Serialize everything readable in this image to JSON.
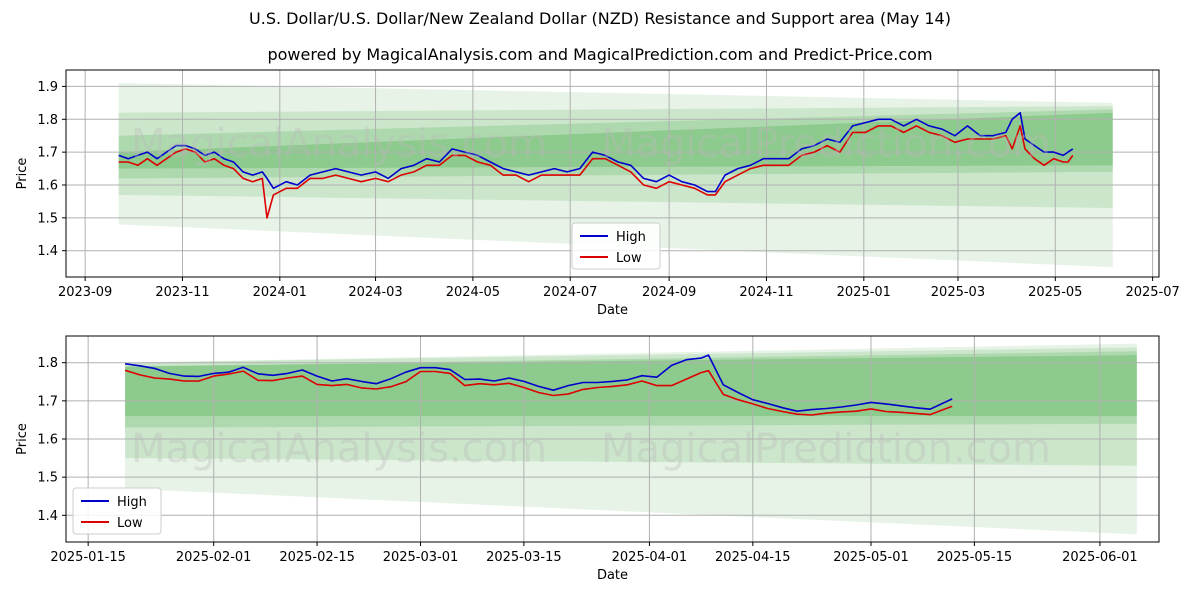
{
  "title": "U.S. Dollar/U.S. Dollar/New Zealand Dollar (NZD) Resistance and Support area (May 14)",
  "subtitle": "powered by MagicalAnalysis.com and MagicalPrediction.com and Predict-Price.com",
  "watermarks": [
    "MagicalAnalysis.com",
    "MagicalPrediction.com"
  ],
  "colors": {
    "high": "#0000cc",
    "low": "#dd0000",
    "band": "#2e9e2e",
    "grid": "#b0b0b0"
  },
  "chart_data": [
    {
      "type": "line",
      "xlabel": "Date",
      "ylabel": "Price",
      "xlim": [
        "2023-08-20",
        "2025-07-05"
      ],
      "ylim": [
        1.32,
        1.95
      ],
      "x_ticks": [
        "2023-09",
        "2023-11",
        "2024-01",
        "2024-03",
        "2024-05",
        "2024-07",
        "2024-09",
        "2024-11",
        "2025-01",
        "2025-03",
        "2025-05",
        "2025-07"
      ],
      "x_tick_dates": [
        "2023-09-01",
        "2023-11-01",
        "2024-01-01",
        "2024-03-01",
        "2024-05-01",
        "2024-07-01",
        "2024-09-01",
        "2024-11-01",
        "2025-01-01",
        "2025-03-01",
        "2025-05-01",
        "2025-07-01"
      ],
      "y_ticks": [
        "1.4",
        "1.5",
        "1.6",
        "1.7",
        "1.8",
        "1.9"
      ],
      "grid": true,
      "legend": {
        "position": "lower-center",
        "entries": [
          "High",
          "Low"
        ]
      },
      "bands": [
        {
          "x0": "2023-09-22",
          "x1": "2025-06-06",
          "y0_start": 1.48,
          "y1_start": 1.91,
          "y0_end": 1.35,
          "y1_end": 1.85,
          "opacity": 0.12
        },
        {
          "x0": "2023-09-22",
          "x1": "2025-06-06",
          "y0_start": 1.57,
          "y1_start": 1.82,
          "y0_end": 1.53,
          "y1_end": 1.84,
          "opacity": 0.14
        },
        {
          "x0": "2023-09-22",
          "x1": "2025-06-06",
          "y0_start": 1.62,
          "y1_start": 1.75,
          "y0_end": 1.64,
          "y1_end": 1.83,
          "opacity": 0.18
        },
        {
          "x0": "2023-09-22",
          "x1": "2025-06-06",
          "y0_start": 1.65,
          "y1_start": 1.7,
          "y0_end": 1.66,
          "y1_end": 1.82,
          "opacity": 0.26
        }
      ],
      "series": [
        {
          "name": "High",
          "x": [
            "2023-09-22",
            "2023-09-28",
            "2023-10-04",
            "2023-10-10",
            "2023-10-16",
            "2023-10-22",
            "2023-10-28",
            "2023-11-03",
            "2023-11-09",
            "2023-11-15",
            "2023-11-21",
            "2023-11-27",
            "2023-12-03",
            "2023-12-09",
            "2023-12-15",
            "2023-12-21",
            "2023-12-24",
            "2023-12-28",
            "2024-01-05",
            "2024-01-12",
            "2024-01-20",
            "2024-01-28",
            "2024-02-05",
            "2024-02-13",
            "2024-02-21",
            "2024-03-01",
            "2024-03-09",
            "2024-03-17",
            "2024-03-25",
            "2024-04-02",
            "2024-04-10",
            "2024-04-18",
            "2024-04-26",
            "2024-05-04",
            "2024-05-12",
            "2024-05-20",
            "2024-05-28",
            "2024-06-05",
            "2024-06-13",
            "2024-06-21",
            "2024-06-29",
            "2024-07-07",
            "2024-07-15",
            "2024-07-23",
            "2024-07-31",
            "2024-08-08",
            "2024-08-16",
            "2024-08-24",
            "2024-09-01",
            "2024-09-09",
            "2024-09-17",
            "2024-09-25",
            "2024-09-30",
            "2024-10-06",
            "2024-10-14",
            "2024-10-22",
            "2024-10-30",
            "2024-11-07",
            "2024-11-15",
            "2024-11-23",
            "2024-12-01",
            "2024-12-09",
            "2024-12-17",
            "2024-12-25",
            "2025-01-02",
            "2025-01-10",
            "2025-01-18",
            "2025-01-26",
            "2025-02-03",
            "2025-02-11",
            "2025-02-19",
            "2025-02-27",
            "2025-03-07",
            "2025-03-15",
            "2025-03-23",
            "2025-03-31",
            "2025-04-04",
            "2025-04-09",
            "2025-04-12",
            "2025-04-18",
            "2025-04-24",
            "2025-04-30",
            "2025-05-06",
            "2025-05-09",
            "2025-05-12"
          ],
          "values": [
            1.69,
            1.68,
            1.69,
            1.7,
            1.68,
            1.7,
            1.72,
            1.72,
            1.71,
            1.69,
            1.7,
            1.68,
            1.67,
            1.64,
            1.63,
            1.64,
            1.62,
            1.59,
            1.61,
            1.6,
            1.63,
            1.64,
            1.65,
            1.64,
            1.63,
            1.64,
            1.62,
            1.65,
            1.66,
            1.68,
            1.67,
            1.71,
            1.7,
            1.69,
            1.67,
            1.65,
            1.64,
            1.63,
            1.64,
            1.65,
            1.64,
            1.65,
            1.7,
            1.69,
            1.67,
            1.66,
            1.62,
            1.61,
            1.63,
            1.61,
            1.6,
            1.58,
            1.58,
            1.63,
            1.65,
            1.66,
            1.68,
            1.68,
            1.68,
            1.71,
            1.72,
            1.74,
            1.73,
            1.78,
            1.79,
            1.8,
            1.8,
            1.78,
            1.8,
            1.78,
            1.77,
            1.75,
            1.78,
            1.75,
            1.75,
            1.76,
            1.8,
            1.82,
            1.74,
            1.72,
            1.7,
            1.7,
            1.69,
            1.7,
            1.71
          ]
        },
        {
          "name": "Low",
          "x": [
            "2023-09-22",
            "2023-09-28",
            "2023-10-04",
            "2023-10-10",
            "2023-10-16",
            "2023-10-22",
            "2023-10-28",
            "2023-11-03",
            "2023-11-09",
            "2023-11-15",
            "2023-11-21",
            "2023-11-27",
            "2023-12-03",
            "2023-12-09",
            "2023-12-15",
            "2023-12-21",
            "2023-12-24",
            "2023-12-28",
            "2024-01-05",
            "2024-01-12",
            "2024-01-20",
            "2024-01-28",
            "2024-02-05",
            "2024-02-13",
            "2024-02-21",
            "2024-03-01",
            "2024-03-09",
            "2024-03-17",
            "2024-03-25",
            "2024-04-02",
            "2024-04-10",
            "2024-04-18",
            "2024-04-26",
            "2024-05-04",
            "2024-05-12",
            "2024-05-20",
            "2024-05-28",
            "2024-06-05",
            "2024-06-13",
            "2024-06-21",
            "2024-06-29",
            "2024-07-07",
            "2024-07-15",
            "2024-07-23",
            "2024-07-31",
            "2024-08-08",
            "2024-08-16",
            "2024-08-24",
            "2024-09-01",
            "2024-09-09",
            "2024-09-17",
            "2024-09-25",
            "2024-09-30",
            "2024-10-06",
            "2024-10-14",
            "2024-10-22",
            "2024-10-30",
            "2024-11-07",
            "2024-11-15",
            "2024-11-23",
            "2024-12-01",
            "2024-12-09",
            "2024-12-17",
            "2024-12-25",
            "2025-01-02",
            "2025-01-10",
            "2025-01-18",
            "2025-01-26",
            "2025-02-03",
            "2025-02-11",
            "2025-02-19",
            "2025-02-27",
            "2025-03-07",
            "2025-03-15",
            "2025-03-23",
            "2025-03-31",
            "2025-04-04",
            "2025-04-09",
            "2025-04-12",
            "2025-04-18",
            "2025-04-24",
            "2025-04-30",
            "2025-05-06",
            "2025-05-09",
            "2025-05-12"
          ],
          "values": [
            1.67,
            1.67,
            1.66,
            1.68,
            1.66,
            1.68,
            1.7,
            1.71,
            1.7,
            1.67,
            1.68,
            1.66,
            1.65,
            1.62,
            1.61,
            1.62,
            1.5,
            1.57,
            1.59,
            1.59,
            1.62,
            1.62,
            1.63,
            1.62,
            1.61,
            1.62,
            1.61,
            1.63,
            1.64,
            1.66,
            1.66,
            1.69,
            1.69,
            1.67,
            1.66,
            1.63,
            1.63,
            1.61,
            1.63,
            1.63,
            1.63,
            1.63,
            1.68,
            1.68,
            1.66,
            1.64,
            1.6,
            1.59,
            1.61,
            1.6,
            1.59,
            1.57,
            1.57,
            1.61,
            1.63,
            1.65,
            1.66,
            1.66,
            1.66,
            1.69,
            1.7,
            1.72,
            1.7,
            1.76,
            1.76,
            1.78,
            1.78,
            1.76,
            1.78,
            1.76,
            1.75,
            1.73,
            1.74,
            1.74,
            1.74,
            1.75,
            1.71,
            1.78,
            1.71,
            1.68,
            1.66,
            1.68,
            1.67,
            1.67,
            1.69
          ]
        }
      ]
    },
    {
      "type": "line",
      "xlabel": "Date",
      "ylabel": "Price",
      "xlim": [
        "2025-01-12",
        "2025-06-09"
      ],
      "ylim": [
        1.33,
        1.87
      ],
      "x_ticks": [
        "2025-01-15",
        "2025-02-01",
        "2025-02-15",
        "2025-03-01",
        "2025-03-15",
        "2025-04-01",
        "2025-04-15",
        "2025-05-01",
        "2025-05-15",
        "2025-06-01"
      ],
      "y_ticks": [
        "1.4",
        "1.5",
        "1.6",
        "1.7",
        "1.8"
      ],
      "grid": true,
      "legend": {
        "position": "lower-left",
        "entries": [
          "High",
          "Low"
        ]
      },
      "bands": [
        {
          "x0": "2025-01-20",
          "x1": "2025-06-06",
          "y0_start": 1.47,
          "y1_start": 1.8,
          "y0_end": 1.35,
          "y1_end": 1.85,
          "opacity": 0.12
        },
        {
          "x0": "2025-01-20",
          "x1": "2025-06-06",
          "y0_start": 1.55,
          "y1_start": 1.8,
          "y0_end": 1.53,
          "y1_end": 1.84,
          "opacity": 0.14
        },
        {
          "x0": "2025-01-20",
          "x1": "2025-06-06",
          "y0_start": 1.63,
          "y1_start": 1.79,
          "y0_end": 1.64,
          "y1_end": 1.83,
          "opacity": 0.18
        },
        {
          "x0": "2025-01-20",
          "x1": "2025-06-06",
          "y0_start": 1.66,
          "y1_start": 1.79,
          "y0_end": 1.66,
          "y1_end": 1.82,
          "opacity": 0.26
        }
      ],
      "series": [
        {
          "name": "High",
          "x": [
            "2025-01-20",
            "2025-01-22",
            "2025-01-24",
            "2025-01-26",
            "2025-01-28",
            "2025-01-30",
            "2025-02-01",
            "2025-02-03",
            "2025-02-05",
            "2025-02-07",
            "2025-02-09",
            "2025-02-11",
            "2025-02-13",
            "2025-02-15",
            "2025-02-17",
            "2025-02-19",
            "2025-02-21",
            "2025-02-23",
            "2025-02-25",
            "2025-02-27",
            "2025-03-01",
            "2025-03-03",
            "2025-03-05",
            "2025-03-07",
            "2025-03-09",
            "2025-03-11",
            "2025-03-13",
            "2025-03-15",
            "2025-03-17",
            "2025-03-19",
            "2025-03-21",
            "2025-03-23",
            "2025-03-25",
            "2025-03-27",
            "2025-03-29",
            "2025-03-31",
            "2025-04-02",
            "2025-04-04",
            "2025-04-06",
            "2025-04-08",
            "2025-04-09",
            "2025-04-11",
            "2025-04-13",
            "2025-04-15",
            "2025-04-17",
            "2025-04-19",
            "2025-04-21",
            "2025-04-23",
            "2025-04-25",
            "2025-04-27",
            "2025-04-29",
            "2025-05-01",
            "2025-05-03",
            "2025-05-05",
            "2025-05-07",
            "2025-05-09",
            "2025-05-12"
          ],
          "values": [
            1.797,
            1.792,
            1.785,
            1.772,
            1.765,
            1.764,
            1.772,
            1.775,
            1.788,
            1.771,
            1.767,
            1.772,
            1.781,
            1.765,
            1.752,
            1.758,
            1.751,
            1.745,
            1.758,
            1.775,
            1.787,
            1.787,
            1.782,
            1.756,
            1.757,
            1.752,
            1.76,
            1.751,
            1.738,
            1.728,
            1.74,
            1.748,
            1.748,
            1.751,
            1.755,
            1.766,
            1.762,
            1.793,
            1.808,
            1.812,
            1.82,
            1.742,
            1.722,
            1.703,
            1.693,
            1.682,
            1.673,
            1.677,
            1.68,
            1.684,
            1.689,
            1.696,
            1.692,
            1.687,
            1.682,
            1.678,
            1.705
          ]
        },
        {
          "name": "Low",
          "x": [
            "2025-01-20",
            "2025-01-22",
            "2025-01-24",
            "2025-01-26",
            "2025-01-28",
            "2025-01-30",
            "2025-02-01",
            "2025-02-03",
            "2025-02-05",
            "2025-02-07",
            "2025-02-09",
            "2025-02-11",
            "2025-02-13",
            "2025-02-15",
            "2025-02-17",
            "2025-02-19",
            "2025-02-21",
            "2025-02-23",
            "2025-02-25",
            "2025-02-27",
            "2025-03-01",
            "2025-03-03",
            "2025-03-05",
            "2025-03-07",
            "2025-03-09",
            "2025-03-11",
            "2025-03-13",
            "2025-03-15",
            "2025-03-17",
            "2025-03-19",
            "2025-03-21",
            "2025-03-23",
            "2025-03-25",
            "2025-03-27",
            "2025-03-29",
            "2025-03-31",
            "2025-04-02",
            "2025-04-04",
            "2025-04-06",
            "2025-04-08",
            "2025-04-09",
            "2025-04-11",
            "2025-04-13",
            "2025-04-15",
            "2025-04-17",
            "2025-04-19",
            "2025-04-21",
            "2025-04-23",
            "2025-04-25",
            "2025-04-27",
            "2025-04-29",
            "2025-05-01",
            "2025-05-03",
            "2025-05-05",
            "2025-05-07",
            "2025-05-09",
            "2025-05-12"
          ],
          "values": [
            1.78,
            1.768,
            1.76,
            1.757,
            1.752,
            1.752,
            1.765,
            1.77,
            1.778,
            1.754,
            1.753,
            1.76,
            1.765,
            1.743,
            1.74,
            1.743,
            1.734,
            1.731,
            1.737,
            1.75,
            1.777,
            1.777,
            1.772,
            1.74,
            1.745,
            1.742,
            1.746,
            1.735,
            1.722,
            1.714,
            1.718,
            1.73,
            1.735,
            1.738,
            1.742,
            1.752,
            1.74,
            1.74,
            1.757,
            1.774,
            1.779,
            1.717,
            1.703,
            1.692,
            1.68,
            1.672,
            1.665,
            1.663,
            1.668,
            1.671,
            1.673,
            1.679,
            1.672,
            1.67,
            1.667,
            1.664,
            1.686
          ]
        }
      ]
    }
  ]
}
